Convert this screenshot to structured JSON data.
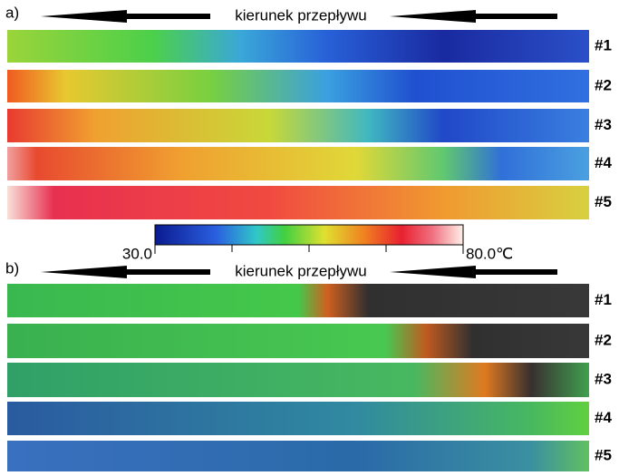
{
  "panels": [
    {
      "label": "a)",
      "flow_label": "kierunek przepływu",
      "strips": [
        {
          "label": "#1"
        },
        {
          "label": "#2"
        },
        {
          "label": "#3"
        },
        {
          "label": "#4"
        },
        {
          "label": "#5"
        }
      ]
    },
    {
      "label": "b)",
      "flow_label": "kierunek przepływu",
      "strips": [
        {
          "label": "#1"
        },
        {
          "label": "#2"
        },
        {
          "label": "#3"
        },
        {
          "label": "#4"
        },
        {
          "label": "#5"
        }
      ]
    }
  ],
  "colorbar": {
    "min_label": "30.0",
    "max_label": "80.0℃"
  }
}
